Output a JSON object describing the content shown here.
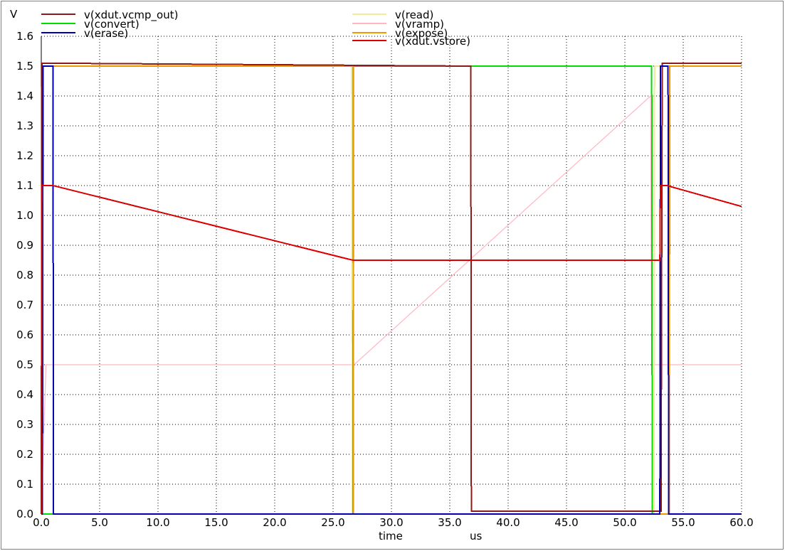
{
  "chart_data": {
    "type": "line",
    "xlabel": "time",
    "xunit": "us",
    "ylabel": "V",
    "xlim": [
      0,
      60
    ],
    "ylim": [
      0,
      1.6
    ],
    "xticks": [
      "0.0",
      "5.0",
      "10.0",
      "15.0",
      "20.0",
      "25.0",
      "30.0",
      "35.0",
      "40.0",
      "45.0",
      "50.0",
      "55.0",
      "60.0"
    ],
    "yticks": [
      "0.0",
      "0.1",
      "0.2",
      "0.3",
      "0.4",
      "0.5",
      "0.6",
      "0.7",
      "0.8",
      "0.9",
      "1.0",
      "1.1",
      "1.2",
      "1.3",
      "1.4",
      "1.5",
      "1.6"
    ],
    "grid": true,
    "legend": "top",
    "series": [
      {
        "name": "v(xdut.vcmp_out)",
        "color": "#8b1a1a",
        "x": [
          0,
          0.05,
          0.3,
          36.8,
          36.85,
          53.1,
          53.2,
          60
        ],
        "y": [
          0,
          1.51,
          1.51,
          1.5,
          0.01,
          0.01,
          1.51,
          1.51
        ]
      },
      {
        "name": "v(convert)",
        "color": "#00dd00",
        "x": [
          0,
          26.7,
          26.75,
          52.3,
          52.35,
          60
        ],
        "y": [
          0,
          0,
          1.5,
          1.5,
          0,
          0
        ]
      },
      {
        "name": "v(erase)",
        "color": "#0000b0",
        "x": [
          0,
          0.1,
          0.15,
          1.0,
          1.05,
          53.0,
          53.05,
          53.7,
          53.75,
          60
        ],
        "y": [
          0,
          0,
          1.5,
          1.5,
          0,
          0,
          1.5,
          1.5,
          0,
          0
        ]
      },
      {
        "name": "v(read)",
        "color": "#eeee99",
        "x": [
          0,
          26.6,
          26.65,
          52.5,
          52.55,
          60
        ],
        "y": [
          1.5,
          1.5,
          0,
          0,
          1.5,
          1.5
        ]
      },
      {
        "name": "v(vramp)",
        "color": "#ffb6c1",
        "x": [
          0,
          0.4,
          0.6,
          26.8,
          52.2,
          52.3,
          53.0,
          53.5,
          60
        ],
        "y": [
          0,
          0.5,
          0.5,
          0.5,
          1.4,
          0.5,
          0.5,
          0.5,
          0.5
        ]
      },
      {
        "name": "v(expose)",
        "color": "#ee9900",
        "x": [
          0,
          0.1,
          0.15,
          26.7,
          26.75,
          53.8,
          53.85,
          60
        ],
        "y": [
          0,
          0,
          1.5,
          1.5,
          0,
          0,
          1.5,
          1.5
        ]
      },
      {
        "name": "v(xdut.vstore)",
        "color": "#dd0000",
        "x": [
          0,
          0.05,
          0.3,
          1.0,
          26.7,
          53.0,
          53.05,
          53.6,
          60
        ],
        "y": [
          0,
          1.1,
          1.1,
          1.1,
          0.85,
          0.85,
          1.1,
          1.1,
          1.03
        ]
      }
    ]
  }
}
